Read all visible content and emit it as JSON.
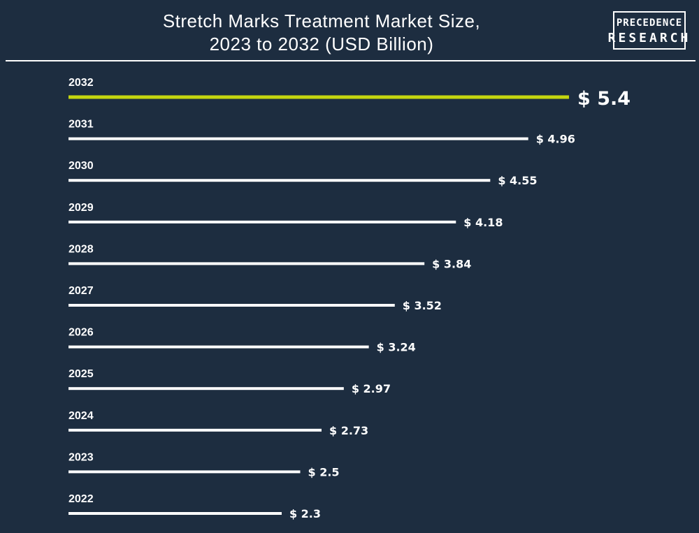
{
  "header": {
    "title_line1": "Stretch Marks Treatment Market Size,",
    "title_line2": "2023 to 2032 (USD Billion)"
  },
  "logo": {
    "line1": "PRECEDENCE",
    "line2": "RESEARCH"
  },
  "colors": {
    "background": "#1d2d40",
    "bar": "#ffffff",
    "highlight_bar": "#c5d60f",
    "text": "#ffffff"
  },
  "chart_data": {
    "type": "bar",
    "orientation": "horizontal",
    "categories": [
      "2032",
      "2031",
      "2030",
      "2029",
      "2028",
      "2027",
      "2026",
      "2025",
      "2024",
      "2023",
      "2022"
    ],
    "values": [
      5.4,
      4.96,
      4.55,
      4.18,
      3.84,
      3.52,
      3.24,
      2.97,
      2.73,
      2.5,
      2.3
    ],
    "value_labels": [
      "$ 5.4",
      "$ 4.96",
      "$ 4.55",
      "$ 4.18",
      "$ 3.84",
      "$ 3.52",
      "$ 3.24",
      "$ 2.97",
      "$ 2.73",
      "$ 2.5",
      "$ 2.3"
    ],
    "highlight_category": "2032",
    "title": "Stretch Marks Treatment Market Size, 2023 to 2032 (USD Billion)",
    "xlabel": "",
    "ylabel": "",
    "grid": false,
    "legend": "none"
  }
}
